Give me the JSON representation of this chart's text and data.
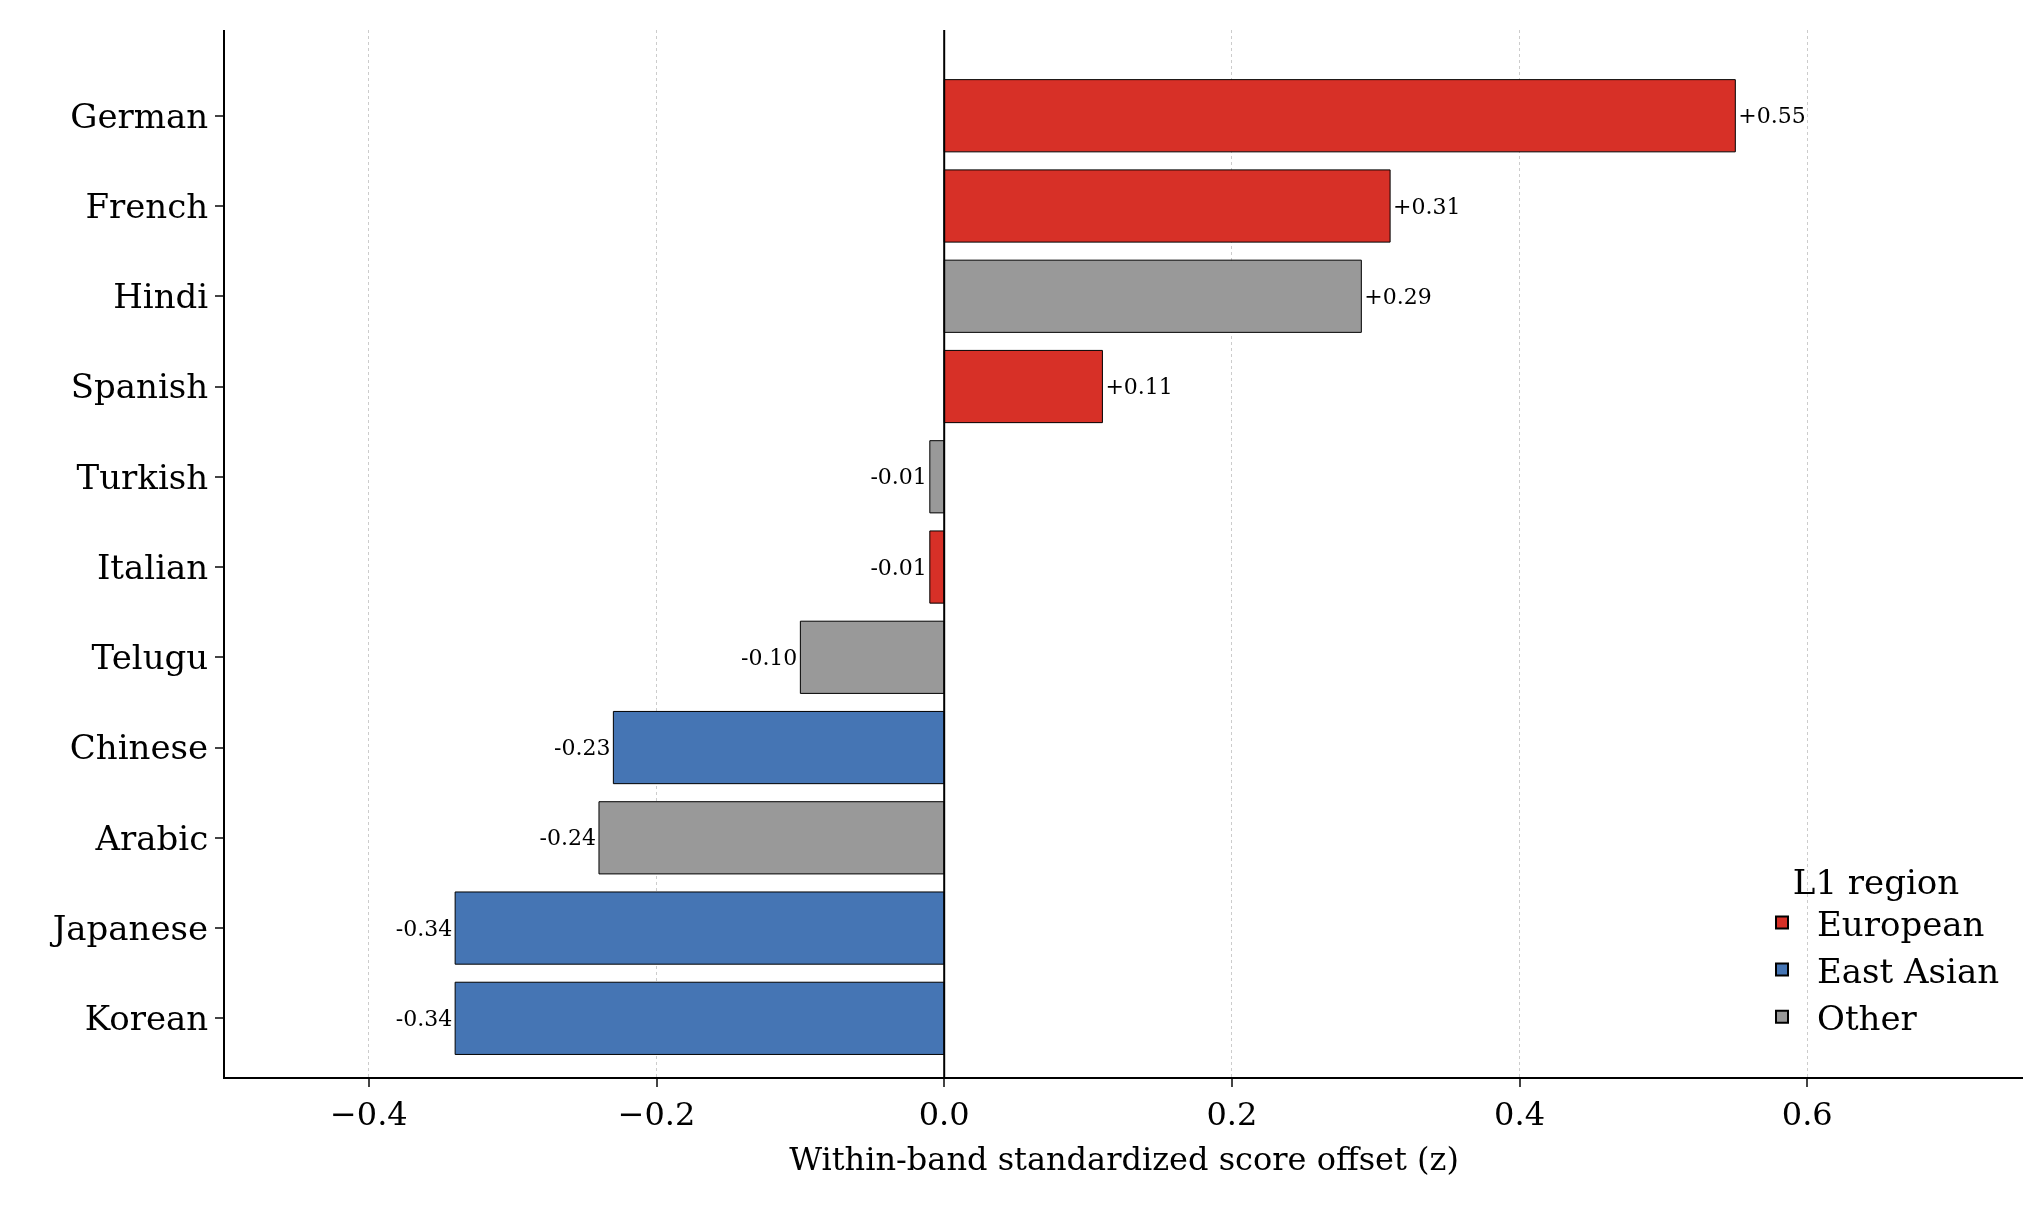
{
  "chart_data": {
    "type": "bar",
    "orientation": "horizontal",
    "categories": [
      "German",
      "French",
      "Hindi",
      "Spanish",
      "Turkish",
      "Italian",
      "Telugu",
      "Chinese",
      "Arabic",
      "Japanese",
      "Korean"
    ],
    "series": [
      {
        "name": "European",
        "color": "#d73027",
        "values": [
          0.55,
          0.31,
          null,
          0.11,
          null,
          -0.01,
          null,
          null,
          null,
          null,
          null
        ],
        "value_labels": [
          "+0.55",
          "+0.31",
          null,
          "+0.11",
          null,
          "-0.01",
          null,
          null,
          null,
          null,
          null
        ]
      },
      {
        "name": "East Asian",
        "color": "#4575b4",
        "values": [
          null,
          null,
          null,
          null,
          null,
          null,
          null,
          -0.23,
          null,
          -0.34,
          -0.34
        ],
        "value_labels": [
          null,
          null,
          null,
          null,
          null,
          null,
          null,
          "-0.23",
          null,
          "-0.34",
          "-0.34"
        ]
      },
      {
        "name": "Other",
        "color": "#999999",
        "values": [
          null,
          null,
          0.29,
          null,
          -0.01,
          null,
          -0.1,
          null,
          -0.24,
          null,
          null
        ],
        "value_labels": [
          null,
          null,
          "+0.29",
          null,
          "-0.01",
          null,
          "-0.10",
          null,
          "-0.24",
          null,
          null
        ]
      }
    ],
    "xlabel": "Within-band standardized score offset (z)",
    "legend_title": "L1 region",
    "legend": "bottom right",
    "xlim": [
      -0.5,
      0.75
    ],
    "xticks": [
      {
        "value": -0.4,
        "label": "−0.4"
      },
      {
        "value": -0.2,
        "label": "−0.2"
      },
      {
        "value": 0.0,
        "label": "0.0"
      },
      0.2,
      0.4,
      0.6
    ],
    "grid": "x",
    "ref_lines": [
      {
        "axis": "x",
        "value": 0,
        "color": "#000000"
      }
    ]
  }
}
